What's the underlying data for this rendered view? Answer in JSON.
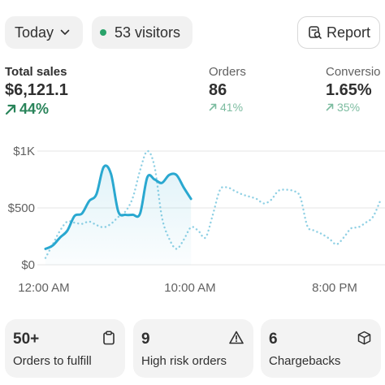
{
  "toolbar": {
    "date_label": "Today",
    "visitors_label": "53 visitors",
    "report_label": "Report",
    "live_dot_color": "#29a36a"
  },
  "metrics": [
    {
      "label": "Total sales",
      "value": "$6,121.1",
      "delta": "44%"
    },
    {
      "label": "Orders",
      "value": "86",
      "delta": "41%"
    },
    {
      "label": "Conversio",
      "value": "1.65%",
      "delta": "35%"
    }
  ],
  "colors": {
    "primary_delta": "#29845a",
    "muted_delta": "#7cbca0",
    "series_today": "#2aa8d0",
    "series_compare": "#8fd0e4"
  },
  "chart_data": {
    "type": "line",
    "y_ticks": [
      "$1K",
      "$500",
      "$0"
    ],
    "x_ticks": [
      "12:00 AM",
      "10:00 AM",
      "8:00 PM"
    ],
    "ylim": [
      0,
      1000
    ],
    "xlim": [
      0,
      23
    ],
    "grid": true,
    "series": [
      {
        "style": "solid",
        "area": true,
        "points": [
          [
            0,
            140
          ],
          [
            0.5,
            170
          ],
          [
            1,
            240
          ],
          [
            1.5,
            300
          ],
          [
            2,
            430
          ],
          [
            2.5,
            450
          ],
          [
            3,
            560
          ],
          [
            3.5,
            620
          ],
          [
            4,
            860
          ],
          [
            4.5,
            800
          ],
          [
            5,
            470
          ],
          [
            5.5,
            440
          ],
          [
            6,
            440
          ],
          [
            6.5,
            450
          ],
          [
            7,
            770
          ],
          [
            7.5,
            750
          ],
          [
            8,
            720
          ],
          [
            8.5,
            790
          ],
          [
            9,
            790
          ],
          [
            9.5,
            680
          ],
          [
            10,
            580
          ]
        ]
      },
      {
        "style": "dotted",
        "area": false,
        "points": [
          [
            0,
            60
          ],
          [
            0.5,
            180
          ],
          [
            1,
            300
          ],
          [
            1.5,
            380
          ],
          [
            2,
            370
          ],
          [
            2.5,
            360
          ],
          [
            3,
            380
          ],
          [
            3.5,
            350
          ],
          [
            4,
            330
          ],
          [
            4.5,
            360
          ],
          [
            5,
            420
          ],
          [
            5.5,
            470
          ],
          [
            6,
            590
          ],
          [
            6.5,
            830
          ],
          [
            7,
            1000
          ],
          [
            7.5,
            860
          ],
          [
            8,
            420
          ],
          [
            8.5,
            230
          ],
          [
            9,
            140
          ],
          [
            9.5,
            220
          ],
          [
            10,
            330
          ],
          [
            10.5,
            300
          ],
          [
            11,
            240
          ],
          [
            11.5,
            440
          ],
          [
            12,
            660
          ],
          [
            12.5,
            680
          ],
          [
            13,
            650
          ],
          [
            13.5,
            620
          ],
          [
            14,
            600
          ],
          [
            14.5,
            580
          ],
          [
            15,
            540
          ],
          [
            15.5,
            570
          ],
          [
            16,
            650
          ],
          [
            16.5,
            660
          ],
          [
            17,
            650
          ],
          [
            17.5,
            600
          ],
          [
            18,
            340
          ],
          [
            18.5,
            300
          ],
          [
            19,
            270
          ],
          [
            19.5,
            230
          ],
          [
            20,
            180
          ],
          [
            20.5,
            240
          ],
          [
            21,
            320
          ],
          [
            21.5,
            330
          ],
          [
            22,
            370
          ],
          [
            22.5,
            420
          ],
          [
            23,
            560
          ]
        ]
      }
    ]
  },
  "cards": [
    {
      "value": "50+",
      "label": "Orders to fulfill"
    },
    {
      "value": "9",
      "label": "High risk orders"
    },
    {
      "value": "6",
      "label": "Chargebacks"
    }
  ]
}
